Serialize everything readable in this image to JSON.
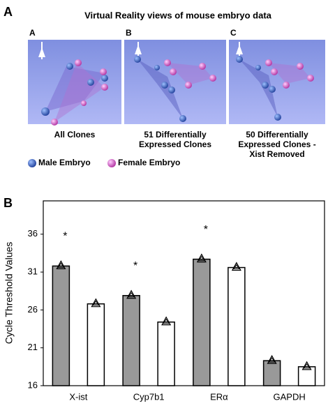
{
  "panel_a": {
    "label": "A",
    "title": "Virtual Reality views of mouse embryo data",
    "views": [
      {
        "label": "A",
        "caption": [
          "All Clones"
        ]
      },
      {
        "label": "B",
        "caption": [
          "51 Differentially",
          "Expressed Clones"
        ]
      },
      {
        "label": "C",
        "caption": [
          "50 Differentially",
          "Expressed Clones -",
          "Xist Removed"
        ]
      }
    ],
    "legend": [
      "Male Embryo",
      "Female Embryo"
    ]
  },
  "panel_b_label": "B",
  "chart_data": {
    "type": "bar",
    "ylabel": "Cycle Threshold Values",
    "categories": [
      "X-ist",
      "Cyp7b1",
      "ERα",
      "GAPDH"
    ],
    "series": [
      {
        "color": "#999999",
        "values": [
          31.8,
          27.9,
          32.7,
          19.3
        ]
      },
      {
        "color": "#ffffff",
        "values": [
          26.8,
          24.4,
          31.6,
          18.5
        ]
      }
    ],
    "significance_labels": [
      "*",
      "*",
      "*",
      null
    ],
    "ylim": [
      16,
      40.4
    ],
    "yticks": [
      16,
      21,
      26,
      31,
      36
    ],
    "grid": false
  }
}
